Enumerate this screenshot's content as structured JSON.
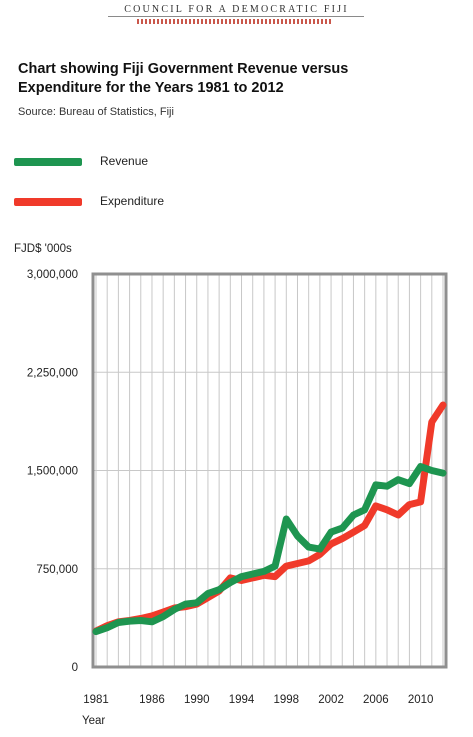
{
  "header": {
    "masthead": "COUNCIL FOR A DEMOCRATIC FIJI"
  },
  "title_line1": "Chart showing Fiji Government Revenue versus",
  "title_line2": "Expenditure for the Years 1981 to 2012",
  "source": "Source: Bureau of Statistics, Fiji",
  "legend": [
    {
      "label": "Revenue",
      "color": "#1e9550"
    },
    {
      "label": "Expenditure",
      "color": "#f03a2a"
    }
  ],
  "chart_data": {
    "type": "line",
    "ylabel": "FJD$ '000s",
    "xlabel": "Year",
    "ylim": [
      0,
      3000000
    ],
    "y_ticks": [
      0,
      750000,
      1500000,
      2250000,
      3000000
    ],
    "y_tick_labels": [
      "0",
      "750,000",
      "1,500,000",
      "2,250,000",
      "3,000,000"
    ],
    "x_tick_labels": [
      "1981",
      "1986",
      "1990",
      "1994",
      "1998",
      "2002",
      "2006",
      "2010"
    ],
    "x_tick_years": [
      1981,
      1986,
      1990,
      1994,
      1998,
      2002,
      2006,
      2010
    ],
    "x": [
      1981,
      1982,
      1983,
      1984,
      1985,
      1986,
      1987,
      1988,
      1989,
      1990,
      1991,
      1992,
      1993,
      1994,
      1995,
      1996,
      1997,
      1998,
      1999,
      2000,
      2001,
      2002,
      2003,
      2004,
      2005,
      2006,
      2007,
      2008,
      2009,
      2010,
      2011,
      2012
    ],
    "grid": true,
    "legend_position": "top-left",
    "series": [
      {
        "name": "Revenue",
        "color": "#1e9550",
        "values": [
          270000,
          300000,
          340000,
          350000,
          355000,
          345000,
          385000,
          440000,
          480000,
          490000,
          560000,
          590000,
          645000,
          690000,
          710000,
          730000,
          770000,
          1130000,
          1000000,
          915000,
          900000,
          1030000,
          1060000,
          1160000,
          1200000,
          1390000,
          1380000,
          1430000,
          1400000,
          1530000,
          1500000,
          1480000
        ]
      },
      {
        "name": "Expenditure",
        "color": "#f03a2a",
        "values": [
          275000,
          315000,
          345000,
          355000,
          370000,
          390000,
          420000,
          450000,
          460000,
          480000,
          530000,
          580000,
          680000,
          660000,
          680000,
          700000,
          690000,
          770000,
          790000,
          810000,
          860000,
          940000,
          980000,
          1030000,
          1080000,
          1230000,
          1200000,
          1160000,
          1240000,
          1260000,
          1870000,
          2000000
        ]
      }
    ]
  }
}
